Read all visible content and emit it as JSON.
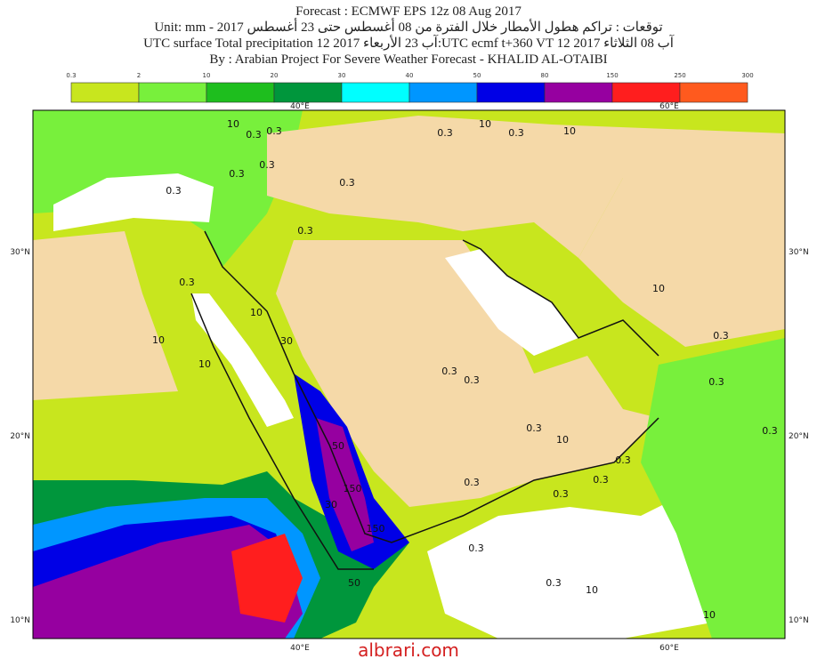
{
  "header": {
    "lines": [
      "Forecast : ECMWF EPS 12z 08 Aug 2017",
      "Unit: mm - 2017 توقعات : تراكم هطول الأمطار خلال الفترة من 08 أغسطس حتى 23 أغسطس",
      "UTC surface  Total precipitation 12 2017 آب 23 الأربعاء:UTC ecmf t+360 VT 12 2017 آب 08 الثلاثاء",
      "By : Arabian Project For Severe Weather Forecast - KHALID AL-OTAIBI"
    ]
  },
  "colorbar": {
    "levels": [
      0.3,
      2,
      10,
      20,
      30,
      40,
      50,
      80,
      150,
      250,
      300
    ],
    "colors": [
      "#c8e61e",
      "#78f03c",
      "#1ebe1e",
      "#00963c",
      "#00ffff",
      "#0096ff",
      "#0000e6",
      "#9600a0",
      "#ff1e1e",
      "#ff5a1e"
    ]
  },
  "map": {
    "lon_labels": [
      "40°E",
      "60°E"
    ],
    "lat_labels": [
      "30°N",
      "20°N",
      "10°N"
    ],
    "contour_labels": [
      "0.3",
      "0.3",
      "10",
      "0.3",
      "0.3",
      "0.3",
      "0.3",
      "0.3",
      "0.3",
      "10",
      "30",
      "10",
      "10",
      "0.3",
      "0.3",
      "10",
      "10",
      "0.3",
      "0.3",
      "0.3",
      "0.3",
      "0.3",
      "0.3",
      "10",
      "0.3",
      "0.3",
      "0.3",
      "0.3",
      "10",
      "50",
      "150",
      "30",
      "150",
      "50",
      "0.3",
      "0.3",
      "10",
      "10"
    ]
  },
  "watermark": "albrari.com"
}
